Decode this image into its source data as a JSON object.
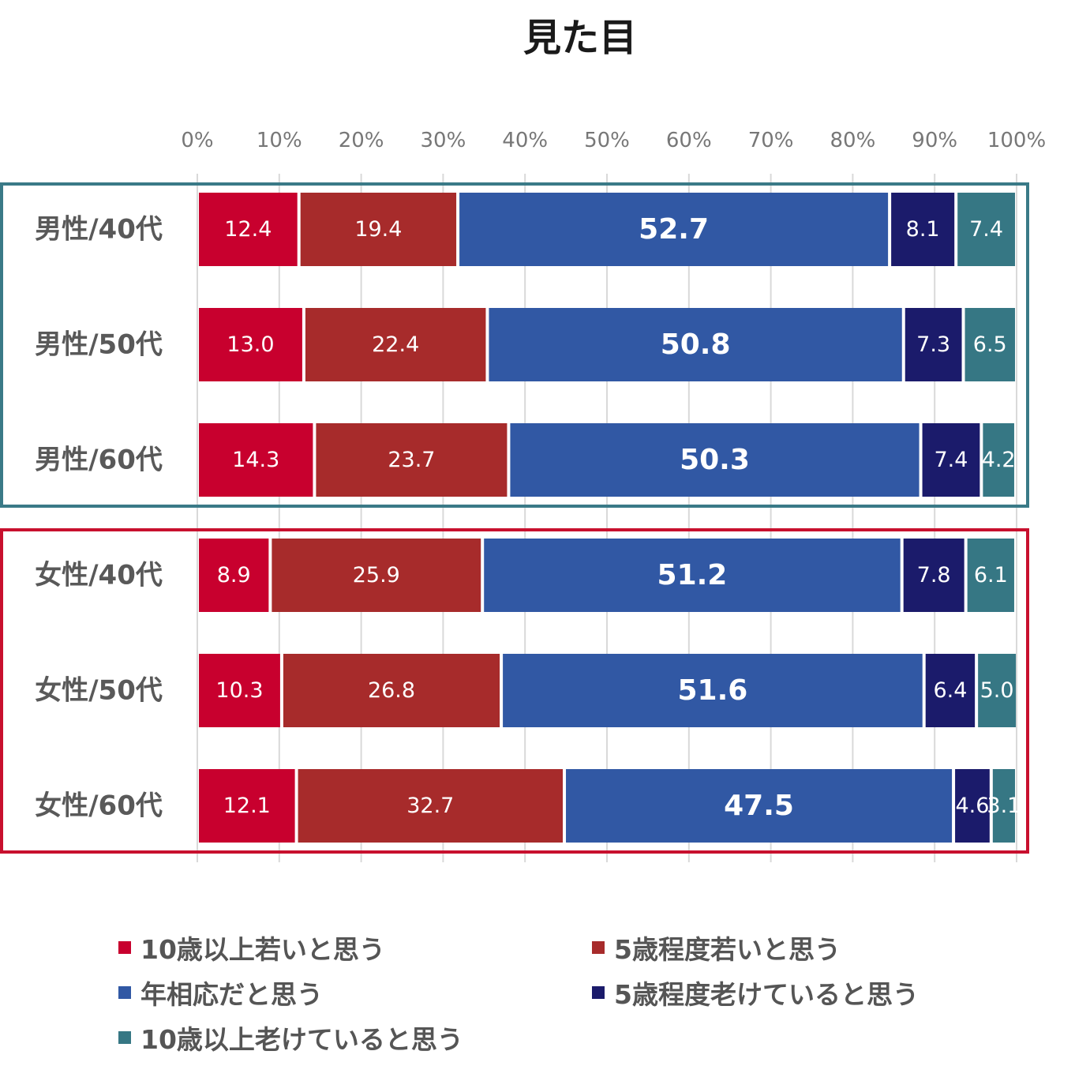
{
  "chart_data": {
    "type": "bar",
    "orientation": "horizontal",
    "stacked": true,
    "title": "見た目",
    "xlim": [
      0,
      100
    ],
    "x_ticks": [
      "0%",
      "10%",
      "20%",
      "30%",
      "40%",
      "50%",
      "60%",
      "70%",
      "80%",
      "90%",
      "100%"
    ],
    "categories": [
      "男性/40代",
      "男性/50代",
      "男性/60代",
      "女性/40代",
      "女性/50代",
      "女性/60代"
    ],
    "groups": [
      {
        "name": "男性",
        "categories": [
          "男性/40代",
          "男性/50代",
          "男性/60代"
        ],
        "color": "#3a7a87"
      },
      {
        "name": "女性",
        "categories": [
          "女性/40代",
          "女性/50代",
          "女性/60代"
        ],
        "color": "#c8102e"
      }
    ],
    "series": [
      {
        "name": "10歳以上若いと思う",
        "color": "#c8002e",
        "labels": [
          "12.4",
          "13.0",
          "14.3",
          "8.9",
          "10.3",
          "12.1"
        ],
        "values": [
          12.4,
          13.0,
          14.3,
          8.9,
          10.3,
          12.1
        ],
        "bold": false
      },
      {
        "name": "5歳程度若いと思う",
        "color": "#a72b2b",
        "labels": [
          "19.4",
          "22.4",
          "23.7",
          "25.9",
          "26.8",
          "32.7"
        ],
        "values": [
          19.4,
          22.4,
          23.7,
          25.9,
          26.8,
          32.7
        ],
        "bold": false
      },
      {
        "name": "年相応だと思う",
        "color": "#3158a4",
        "labels": [
          "52.7",
          "50.8",
          "50.3",
          "51.2",
          "51.6",
          "47.5"
        ],
        "values": [
          52.7,
          50.8,
          50.3,
          51.2,
          51.6,
          47.5
        ],
        "bold": true
      },
      {
        "name": "5歳程度老けていると思う",
        "color": "#1b1b6b",
        "labels": [
          "8.1",
          "7.3",
          "7.4",
          "7.8",
          "6.4",
          "4.6"
        ],
        "values": [
          8.1,
          7.3,
          7.4,
          7.8,
          6.4,
          4.6
        ],
        "bold": false
      },
      {
        "name": "10歳以上老けていると思う",
        "color": "#367784",
        "labels": [
          "7.4",
          "6.5",
          "4.2",
          "6.1",
          "5.0",
          "3.1"
        ],
        "values": [
          7.4,
          6.5,
          4.2,
          6.1,
          5.0,
          3.1
        ],
        "bold": false
      }
    ],
    "legend_position": "bottom",
    "grid": true
  }
}
